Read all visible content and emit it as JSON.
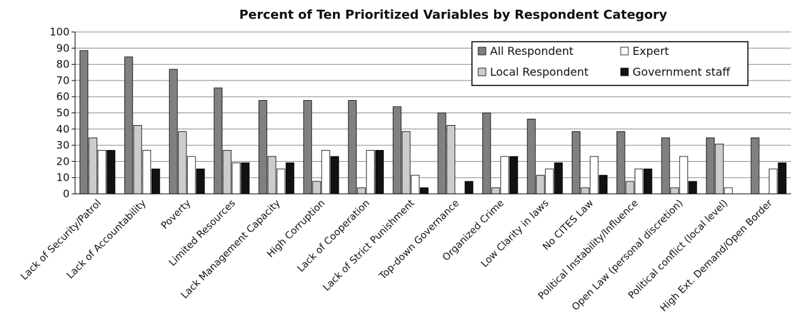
{
  "chart_data": {
    "type": "bar",
    "title": "Percent of Ten Prioritized Variables by  Respondent  Category",
    "xlabel": "",
    "ylabel": "",
    "ylim": [
      0,
      100
    ],
    "yticks": [
      0,
      10,
      20,
      30,
      40,
      50,
      60,
      70,
      80,
      90,
      100
    ],
    "grid": true,
    "legend_position": "top-right",
    "categories": [
      "Lack of Security/Patrol",
      "Lack of Accountability",
      "Poverty",
      "Limited Resources",
      "Lack Management Capacity",
      "High Corruption",
      "Lack of Cooperation",
      "Lack of Strict Punishment",
      "Top-down Governance",
      "Organized Crime",
      "Low Clarity in laws",
      "No CITES Law",
      "Political Instability/Influence",
      "Open Law (personal discretion)",
      "Political conflict (local level)",
      "High Ext. Demand/Open Border"
    ],
    "series": [
      {
        "name": "All Respondent",
        "color": "#808080",
        "values": [
          88.5,
          84.6,
          76.9,
          65.4,
          57.7,
          57.7,
          57.7,
          53.8,
          50.0,
          50.0,
          46.2,
          38.5,
          38.5,
          34.6,
          34.6,
          34.6
        ]
      },
      {
        "name": "Local Respondent",
        "color": "#cccccc",
        "values": [
          34.6,
          42.3,
          38.5,
          26.9,
          23.1,
          7.7,
          3.8,
          38.5,
          42.3,
          3.8,
          11.5,
          3.8,
          7.7,
          3.8,
          30.8,
          0
        ]
      },
      {
        "name": "Expert",
        "color": "#ffffff",
        "values": [
          26.9,
          26.9,
          23.1,
          19.2,
          15.4,
          26.9,
          26.9,
          11.5,
          0,
          23.1,
          15.4,
          23.1,
          15.4,
          23.1,
          3.8,
          15.4
        ]
      },
      {
        "name": "Government staff",
        "color": "#111111",
        "values": [
          26.9,
          15.4,
          15.4,
          19.2,
          19.2,
          23.1,
          26.9,
          3.8,
          7.7,
          23.1,
          19.2,
          11.5,
          15.4,
          7.7,
          0,
          19.2
        ]
      }
    ],
    "legend_order": [
      "All Respondent",
      "Expert",
      "Local Respondent",
      "Government staff"
    ]
  }
}
